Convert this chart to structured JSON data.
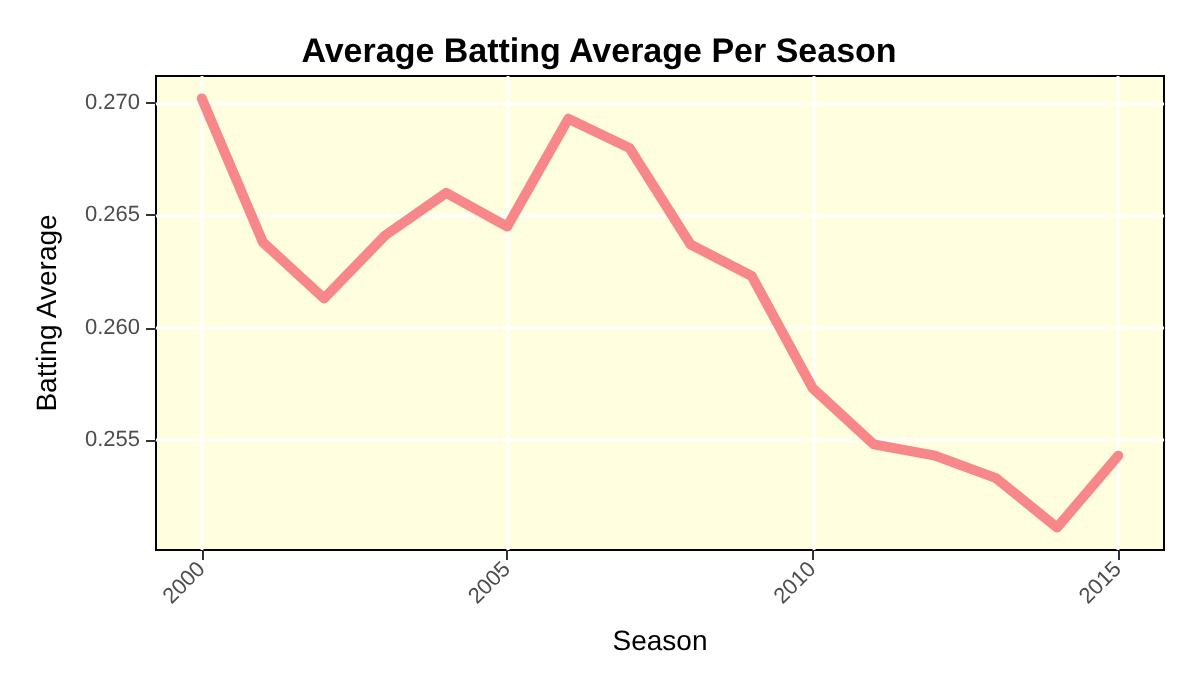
{
  "chart_data": {
    "type": "line",
    "title": "Average Batting Average Per Season",
    "xlabel": "Season",
    "ylabel": "Batting Average",
    "x": [
      2000,
      2001,
      2002,
      2003,
      2004,
      2005,
      2006,
      2007,
      2008,
      2009,
      2010,
      2011,
      2012,
      2013,
      2014,
      2015
    ],
    "series": [
      {
        "color": "#f8878a",
        "values": [
          0.2702,
          0.2638,
          0.2613,
          0.2641,
          0.266,
          0.2645,
          0.2693,
          0.268,
          0.2637,
          0.2623,
          0.2573,
          0.2548,
          0.2543,
          0.2533,
          0.2511,
          0.2543
        ]
      }
    ],
    "xlim": [
      1999.25,
      2015.75
    ],
    "xticks": [
      2000,
      2005,
      2010,
      2015
    ],
    "ylim": [
      0.2501,
      0.2712
    ],
    "yticks": [
      {
        "value": 0.255,
        "label": "0.255"
      },
      {
        "value": 0.26,
        "label": "0.260"
      },
      {
        "value": 0.265,
        "label": "0.265"
      },
      {
        "value": 0.27,
        "label": "0.270"
      }
    ],
    "grid": true,
    "marker": "none",
    "line_style": "solid"
  }
}
